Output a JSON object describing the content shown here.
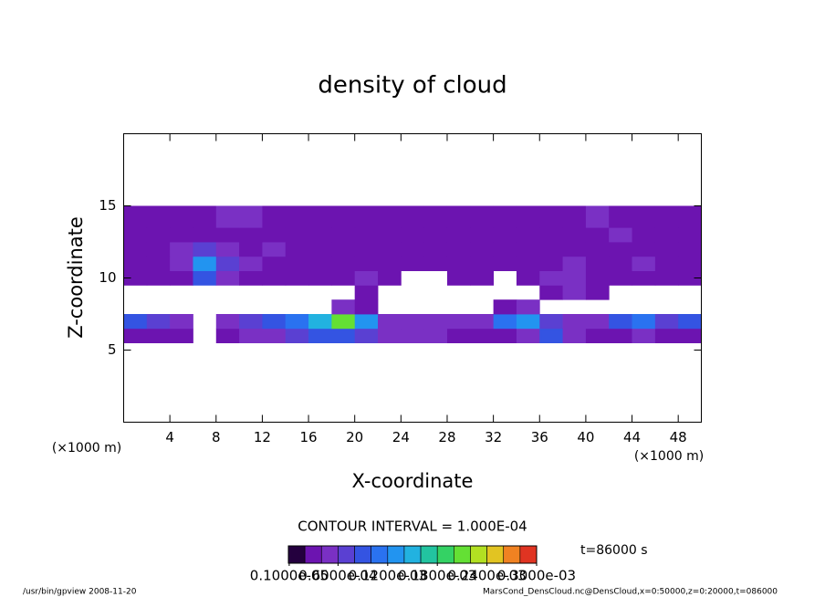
{
  "chart_data": {
    "type": "contour",
    "title": "density of cloud",
    "xlabel": "X-coordinate",
    "ylabel": "Z-coordinate",
    "x_unit": "(×1000 m)",
    "y_unit": "(×1000 m)",
    "xlim": [
      0,
      50
    ],
    "ylim": [
      0,
      20
    ],
    "xticks": [
      4,
      8,
      12,
      16,
      20,
      24,
      28,
      32,
      36,
      40,
      44,
      48
    ],
    "yticks": [
      5,
      10,
      15
    ],
    "x_edges": [
      0,
      2,
      4,
      6,
      8,
      10,
      12,
      14,
      16,
      18,
      20,
      22,
      24,
      26,
      28,
      30,
      32,
      34,
      36,
      38,
      40,
      42,
      44,
      46,
      48,
      50
    ],
    "z_edges": [
      5.5,
      6.5,
      7.5,
      8.5,
      9.5,
      10.5,
      11.5,
      12.5,
      13.5,
      15
    ],
    "values": [
      [
        3e-05,
        3e-05,
        3e-05,
        null,
        3e-05,
        4e-05,
        5e-05,
        6e-05,
        8e-05,
        9e-05,
        6e-05,
        4e-05,
        4e-05,
        4e-05,
        3e-05,
        3e-05,
        3e-05,
        4e-05,
        8e-05,
        4e-05,
        3e-05,
        3e-05,
        4e-05,
        3e-05,
        3e-05
      ],
      [
        8e-05,
        6e-05,
        5e-05,
        null,
        4e-05,
        6e-05,
        8e-05,
        0.0001,
        0.00014,
        0.0002,
        0.00012,
        5e-05,
        4e-05,
        5e-05,
        4e-05,
        5e-05,
        0.0001,
        0.00012,
        6e-05,
        4e-05,
        4e-05,
        8e-05,
        0.0001,
        6e-05,
        8e-05
      ],
      [
        null,
        null,
        null,
        null,
        null,
        null,
        null,
        null,
        null,
        4e-05,
        3e-05,
        null,
        null,
        null,
        null,
        null,
        3e-05,
        4e-05,
        null,
        null,
        null,
        null,
        null,
        null,
        null
      ],
      [
        null,
        null,
        null,
        null,
        null,
        null,
        null,
        null,
        null,
        null,
        3e-05,
        null,
        null,
        null,
        null,
        null,
        null,
        null,
        3e-05,
        4e-05,
        3e-05,
        null,
        null,
        null,
        null
      ],
      [
        3e-05,
        3e-05,
        3e-05,
        8e-05,
        4e-05,
        3e-05,
        3e-05,
        3e-05,
        3e-05,
        3e-05,
        4e-05,
        3e-05,
        null,
        null,
        3e-05,
        3e-05,
        null,
        3e-05,
        4e-05,
        4e-05,
        3e-05,
        3e-05,
        3e-05,
        3e-05,
        3e-05
      ],
      [
        3e-05,
        3e-05,
        4e-05,
        0.00012,
        6e-05,
        4e-05,
        3e-05,
        3e-05,
        3e-05,
        3e-05,
        3e-05,
        3e-05,
        3e-05,
        3e-05,
        3e-05,
        3e-05,
        3e-05,
        3e-05,
        3e-05,
        4e-05,
        3e-05,
        3e-05,
        4e-05,
        3e-05,
        3e-05
      ],
      [
        3e-05,
        3e-05,
        4e-05,
        6e-05,
        4e-05,
        3e-05,
        4e-05,
        3e-05,
        3e-05,
        3e-05,
        3e-05,
        3e-05,
        3e-05,
        3e-05,
        3e-05,
        3e-05,
        3e-05,
        3e-05,
        3e-05,
        3e-05,
        3e-05,
        3e-05,
        3e-05,
        3e-05,
        3e-05
      ],
      [
        3e-05,
        3e-05,
        3e-05,
        3e-05,
        3e-05,
        3e-05,
        3e-05,
        3e-05,
        3e-05,
        3e-05,
        3e-05,
        3e-05,
        3e-05,
        3e-05,
        3e-05,
        3e-05,
        3e-05,
        3e-05,
        3e-05,
        3e-05,
        3e-05,
        4e-05,
        3e-05,
        3e-05,
        3e-05
      ],
      [
        3e-05,
        3e-05,
        3e-05,
        3e-05,
        4e-05,
        5e-05,
        3e-05,
        3e-05,
        3e-05,
        3e-05,
        3e-05,
        3e-05,
        3e-05,
        3e-05,
        3e-05,
        3e-05,
        3e-05,
        3e-05,
        3e-05,
        3e-05,
        4e-05,
        3e-05,
        3e-05,
        3e-05,
        3e-05
      ]
    ],
    "colorbar": {
      "levels": [
        0,
        2e-05,
        4e-05,
        6e-05,
        8e-05,
        0.0001,
        0.00012,
        0.00014,
        0.00016,
        0.00018,
        0.0002,
        0.00022,
        0.00024,
        0.00026,
        0.00028,
        0.0003
      ],
      "colors": [
        "#24003e",
        "#6c14b0",
        "#7a30c4",
        "#5a40d2",
        "#3454e2",
        "#2a72f0",
        "#2294f0",
        "#22b2e0",
        "#22c4a0",
        "#34d264",
        "#64e034",
        "#b2e022",
        "#e2c422",
        "#f08222",
        "#e03422"
      ],
      "ticks": [
        {
          "value": 1e-06,
          "label": "0.1000e-05"
        },
        {
          "value": 6e-05,
          "label": "0.6000e-04"
        },
        {
          "value": 0.00012,
          "label": "0.1200e-03"
        },
        {
          "value": 0.00018,
          "label": "0.1800e-03"
        },
        {
          "value": 0.00024,
          "label": "0.2400e-03"
        },
        {
          "value": 0.0003,
          "label": "0.3000e-03"
        }
      ]
    },
    "contour_label": "CONTOUR INTERVAL = 1.000E-04",
    "time_label": "t=86000 s",
    "footer_left": "/usr/bin/gpview   2008-11-20",
    "footer_right": "MarsCond_DensCloud.nc@DensCloud,x=0:50000,z=0:20000,t=086000"
  }
}
